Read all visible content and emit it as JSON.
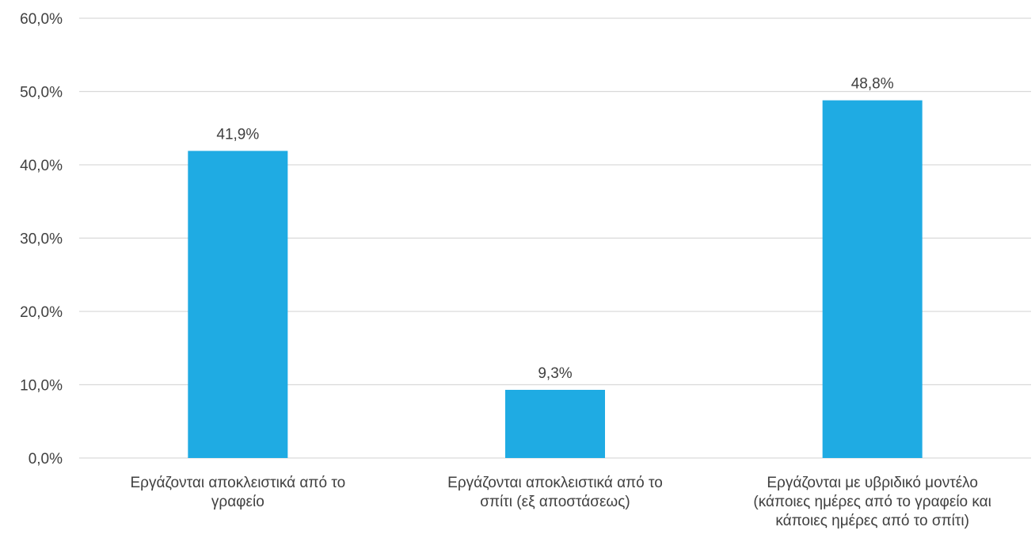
{
  "chart_data": {
    "type": "bar",
    "categories": [
      [
        "Εργάζονται αποκλειστικά από το",
        "γραφείο"
      ],
      [
        "Εργάζονται αποκλειστικά από το",
        "σπίτι (εξ αποστάσεως)"
      ],
      [
        "Εργάζονται με υβριδικό μοντέλο",
        "(κάποιες ημέρες από το γραφείο και",
        "κάποιες ημέρες από το σπίτι)"
      ]
    ],
    "values": [
      41.9,
      9.3,
      48.8
    ],
    "data_labels": [
      "41,9%",
      "9,3%",
      "48,8%"
    ],
    "y_ticks": [
      "0,0%",
      "10,0%",
      "20,0%",
      "30,0%",
      "40,0%",
      "50,0%",
      "60,0%"
    ],
    "ylim": [
      0,
      60
    ],
    "grid": true,
    "legend": "none",
    "colors": {
      "bar": "#1fabe3",
      "grid": "#d9d9d9",
      "text": "#404040"
    }
  }
}
